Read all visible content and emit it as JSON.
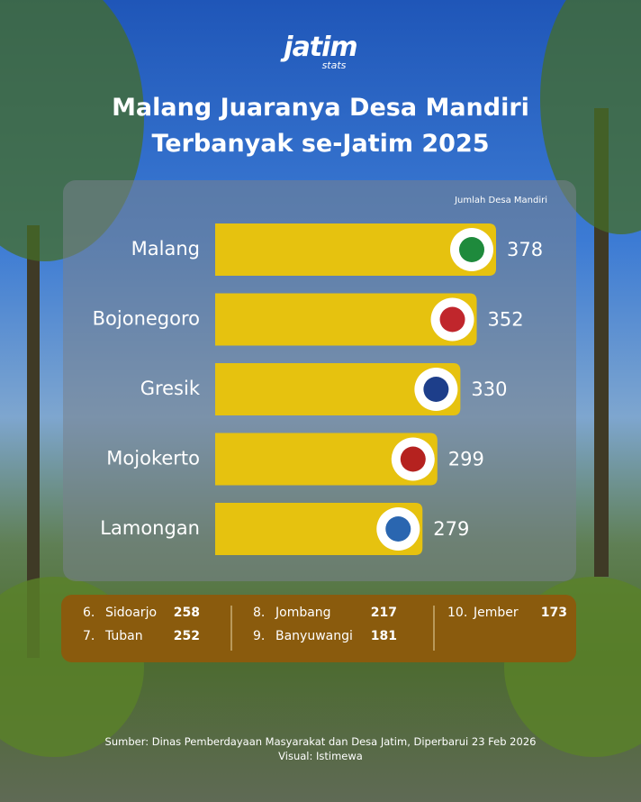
{
  "brand": {
    "name": "jatim",
    "tag": "stats"
  },
  "chart_data": {
    "type": "bar",
    "orientation": "horizontal",
    "title": "Malang Juaranya Desa Mandiri Terbanyak se-Jatim 2025",
    "value_axis_label": "Jumlah Desa Mandiri",
    "categories": [
      "Malang",
      "Bojonegoro",
      "Gresik",
      "Mojokerto",
      "Lamongan"
    ],
    "values": [
      378,
      352,
      330,
      299,
      279
    ],
    "color": "#e6c20f"
  },
  "others": [
    {
      "rank": "6.",
      "name": "Sidoarjo",
      "value": 258
    },
    {
      "rank": "7.",
      "name": "Tuban",
      "value": 252
    },
    {
      "rank": "8.",
      "name": "Jombang",
      "value": 217
    },
    {
      "rank": "9.",
      "name": "Banyuwangi",
      "value": 181
    },
    {
      "rank": "10.",
      "name": "Jember",
      "value": 173
    }
  ],
  "footer": {
    "source": "Sumber: Dinas Pemberdayaan Masyarakat dan Desa Jatim, Diperbarui 23 Feb 2026",
    "visual": "Visual: Istimewa"
  }
}
